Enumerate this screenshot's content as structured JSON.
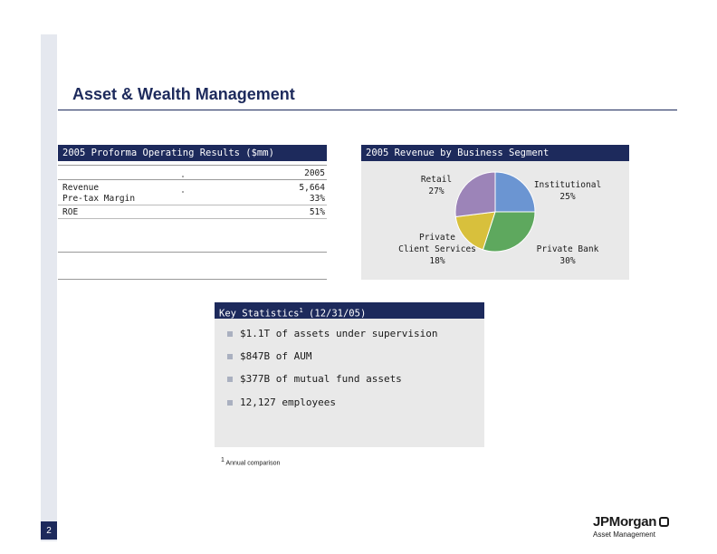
{
  "page": {
    "number": "2",
    "title": "Asset & Wealth Management"
  },
  "operating_results": {
    "header": "2005 Proforma Operating Results ($mm)",
    "year": "2005",
    "rows": [
      {
        "label": "Revenue",
        "value": "5,664"
      },
      {
        "label": "Pre-tax Margin",
        "value": "33%"
      },
      {
        "label": "ROE",
        "value": "51%"
      }
    ]
  },
  "revenue_segment": {
    "header": "2005 Revenue by Business Segment"
  },
  "chart_data": {
    "type": "pie",
    "title": "2005 Revenue by Business Segment",
    "categories": [
      "Institutional",
      "Private Bank",
      "Private Client Services",
      "Retail"
    ],
    "values": [
      25,
      30,
      18,
      27
    ],
    "labels": [
      {
        "line1": "Institutional",
        "line2": "25%"
      },
      {
        "line1": "Private Bank",
        "line2": "30%"
      },
      {
        "line1": "Private",
        "line1b": "Client Services",
        "line2": "18%"
      },
      {
        "line1": "Retail",
        "line2": "27%"
      }
    ],
    "colors": [
      "#6b95d2",
      "#5ea85e",
      "#d8c03c",
      "#9c84b8"
    ],
    "legend": "none"
  },
  "key_statistics": {
    "header_pre": "Key Statistics",
    "header_sup": "1",
    "header_post": " (12/31/05)",
    "items": [
      "$1.1T of assets under supervision",
      "$847B of AUM",
      "$377B of mutual fund assets",
      "12,127 employees"
    ],
    "bullet_color": "#aab0c0"
  },
  "footnote": {
    "sup": "1",
    "text": " Annual comparison"
  },
  "logo": {
    "name": "JPMorgan",
    "sub": "Asset Management"
  },
  "colors": {
    "navy": "#1d2a5c",
    "panel": "#e9e9e9",
    "sidebar": "#e5e8ef"
  }
}
